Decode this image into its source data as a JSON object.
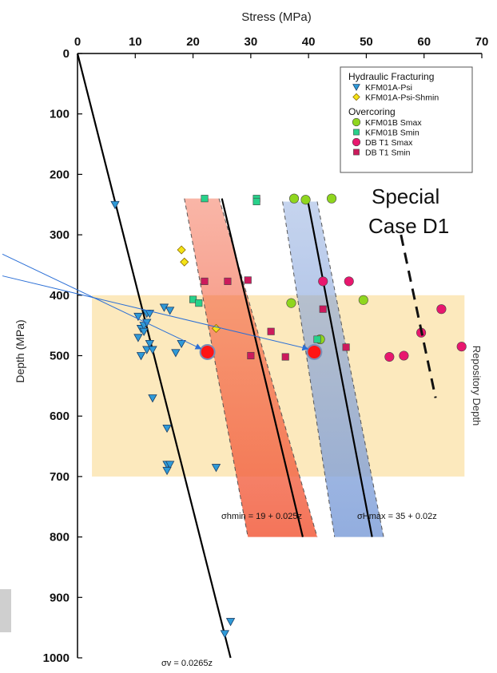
{
  "chart_data": {
    "type": "scatter",
    "xlabel": "Stress (MPa)",
    "ylabel": "Depth (MPa)",
    "xlim": [
      0,
      70
    ],
    "ylim": [
      0,
      1000
    ],
    "x_ticks": [
      "0",
      "10",
      "20",
      "30",
      "40",
      "50",
      "60",
      "70"
    ],
    "y_ticks": [
      "0",
      "100",
      "200",
      "300",
      "400",
      "500",
      "600",
      "700",
      "800",
      "900",
      "1000"
    ],
    "y_inverted": true,
    "x_axis_position": "top",
    "legend": {
      "position": "top-right",
      "groups": [
        {
          "title": "Hydraulic Fracturing",
          "entries": [
            {
              "name": "KFM01A-Psi",
              "marker": "triangle-down",
              "color": "#2f9ad8"
            },
            {
              "name": "KFM01A-Psi-Shmin",
              "marker": "diamond",
              "color": "#f4e316"
            }
          ]
        },
        {
          "title": "Overcoring",
          "entries": [
            {
              "name": "KFM01B  Smax",
              "marker": "circle",
              "color": "#8fd61e"
            },
            {
              "name": "KFM01B  Smin",
              "marker": "square",
              "color": "#27d18a"
            },
            {
              "name": "DB T1  Smax",
              "marker": "circle",
              "color": "#e8176e"
            },
            {
              "name": "DB T1  Smin",
              "marker": "square",
              "color": "#cc1a5c"
            }
          ]
        }
      ]
    },
    "series": [
      {
        "name": "KFM01A-Psi",
        "marker": "triangle-down",
        "color": "#2f9ad8",
        "points": [
          [
            6.5,
            250
          ],
          [
            10.5,
            435
          ],
          [
            11,
            455
          ],
          [
            11.5,
            450
          ],
          [
            12,
            430
          ],
          [
            12.5,
            430
          ],
          [
            12,
            445
          ],
          [
            11.5,
            460
          ],
          [
            10.5,
            470
          ],
          [
            12.5,
            480
          ],
          [
            12,
            490
          ],
          [
            11,
            500
          ],
          [
            13,
            490
          ],
          [
            15,
            420
          ],
          [
            16,
            425
          ],
          [
            17,
            495
          ],
          [
            18,
            480
          ],
          [
            13,
            570
          ],
          [
            15.5,
            620
          ],
          [
            15.5,
            680
          ],
          [
            16,
            680
          ],
          [
            15.5,
            690
          ],
          [
            24,
            685
          ],
          [
            25.5,
            960
          ],
          [
            26.5,
            940
          ]
        ]
      },
      {
        "name": "KFM01A-Psi-Shmin",
        "marker": "diamond",
        "color": "#f4e316",
        "points": [
          [
            18,
            325
          ],
          [
            18.5,
            345
          ],
          [
            24,
            455
          ]
        ]
      },
      {
        "name": "KFM01B  Smax",
        "marker": "circle",
        "color": "#8fd61e",
        "points": [
          [
            37.5,
            240
          ],
          [
            39.5,
            242
          ],
          [
            44,
            240
          ],
          [
            37,
            413
          ],
          [
            42,
            473
          ],
          [
            49.5,
            408
          ]
        ]
      },
      {
        "name": "KFM01B  Smin",
        "marker": "square",
        "color": "#27d18a",
        "points": [
          [
            22,
            240
          ],
          [
            31,
            240
          ],
          [
            31,
            245
          ],
          [
            20,
            407
          ],
          [
            21,
            413
          ],
          [
            41.5,
            473
          ]
        ]
      },
      {
        "name": "DB T1  Smax",
        "marker": "circle",
        "color": "#e8176e",
        "points": [
          [
            42.5,
            377
          ],
          [
            47,
            377
          ],
          [
            54,
            502
          ],
          [
            56.5,
            500
          ],
          [
            59.5,
            462
          ],
          [
            63,
            423
          ],
          [
            66.5,
            485
          ]
        ]
      },
      {
        "name": "DB T1  Smin",
        "marker": "square",
        "color": "#cc1a5c",
        "points": [
          [
            22,
            377
          ],
          [
            26,
            377
          ],
          [
            29.5,
            375
          ],
          [
            30,
            500
          ],
          [
            33.5,
            460
          ],
          [
            36,
            502
          ],
          [
            42.5,
            423
          ],
          [
            46.5,
            486
          ]
        ]
      },
      {
        "marker": "circle-large",
        "color": "#ff1515",
        "points": [
          [
            22.5,
            494
          ],
          [
            41,
            494
          ]
        ]
      }
    ],
    "trend_lines": [
      {
        "label": "σv = 0.0265z",
        "intercept": 0,
        "slope": 0.0265,
        "z_range": [
          0,
          1000
        ]
      },
      {
        "label": "σhmin = 19 + 0.025z",
        "intercept": 19,
        "slope": 0.025,
        "z_range": [
          240,
          800
        ]
      },
      {
        "label": "σHmax = 35 + 0.02z",
        "intercept": 35,
        "slope": 0.02,
        "z_range": [
          240,
          800
        ]
      }
    ],
    "bands": [
      {
        "color": "#f25c3c",
        "left": [
          [
            18.5,
            240
          ],
          [
            29.5,
            800
          ]
        ],
        "right": [
          [
            24.5,
            240
          ],
          [
            41.5,
            800
          ]
        ]
      },
      {
        "color": "#7f9fd9",
        "left": [
          [
            35.5,
            245
          ],
          [
            44.5,
            800
          ]
        ],
        "right": [
          [
            41.5,
            245
          ],
          [
            53,
            800
          ]
        ]
      }
    ],
    "repository_band": {
      "label": "Repository Depth",
      "z_range": [
        400,
        700
      ],
      "x_range": [
        2.5,
        67
      ]
    },
    "annotation": {
      "text_line1": "Special",
      "text_line2": "Case D1"
    },
    "special_dashed_line": [
      [
        56,
        300
      ],
      [
        62,
        570
      ]
    ],
    "arrows": [
      {
        "from": [
          -13,
          332
        ],
        "to": [
          22.5,
          494
        ]
      },
      {
        "from": [
          -13,
          368
        ],
        "to": [
          41,
          494
        ]
      }
    ]
  }
}
